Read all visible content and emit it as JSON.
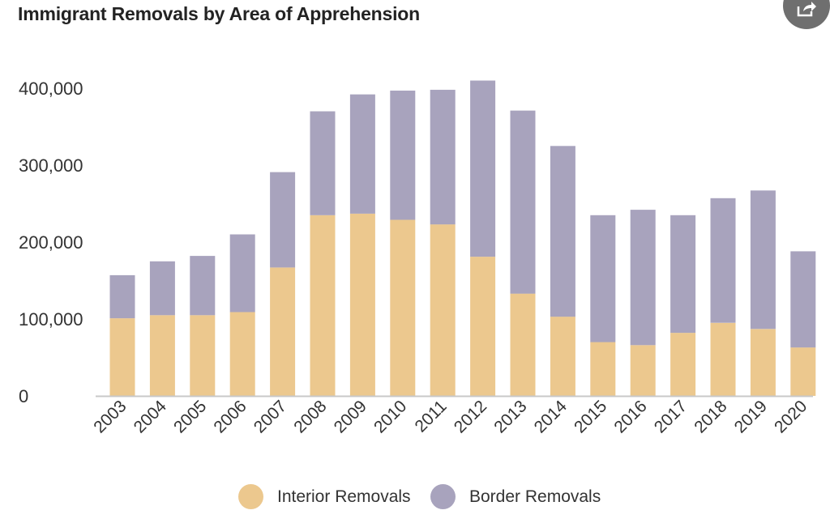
{
  "colors": {
    "interior": "#ecc88e",
    "border": "#a8a3bd",
    "axis": "#c8c8c8",
    "text": "#333333",
    "share_button": "#6f6f6f"
  },
  "header": {
    "share_icon": "share-icon"
  },
  "chart_data": {
    "type": "bar",
    "stacked": true,
    "title": "Immigrant Removals by Area of Apprehension",
    "xlabel": "",
    "ylabel": "",
    "ylim": [
      0,
      420000
    ],
    "grid": false,
    "legend_position": "bottom",
    "categories": [
      "2003",
      "2004",
      "2005",
      "2006",
      "2007",
      "2008",
      "2009",
      "2010",
      "2011",
      "2012",
      "2013",
      "2014",
      "2015",
      "2016",
      "2017",
      "2018",
      "2019",
      "2020"
    ],
    "yticks": [
      {
        "value": 0,
        "label": "0"
      },
      {
        "value": 100000,
        "label": "100,000"
      },
      {
        "value": 200000,
        "label": "200,000"
      },
      {
        "value": 300000,
        "label": "300,000"
      },
      {
        "value": 400000,
        "label": "400,000"
      }
    ],
    "series": [
      {
        "name": "Interior Removals",
        "color": "#ecc88e",
        "values": [
          101000,
          105000,
          105000,
          109000,
          167000,
          235000,
          237000,
          229000,
          223000,
          181000,
          133000,
          103000,
          70000,
          66000,
          82000,
          95000,
          87000,
          63000
        ]
      },
      {
        "name": "Border Removals",
        "color": "#a8a3bd",
        "values": [
          56000,
          70000,
          77000,
          101000,
          124000,
          135000,
          155000,
          168000,
          175000,
          229000,
          238000,
          222000,
          165000,
          176000,
          153000,
          162000,
          180000,
          125000
        ]
      }
    ]
  }
}
